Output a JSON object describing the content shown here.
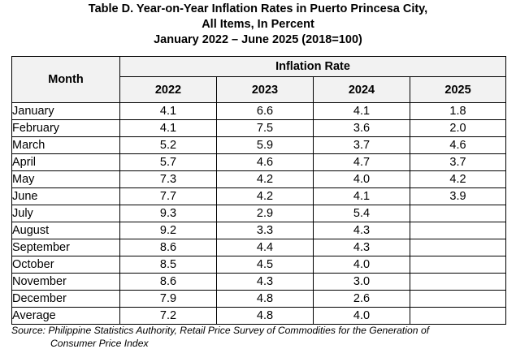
{
  "title": {
    "line1": "Table D. Year-on-Year Inflation Rates in Puerto Princesa City,",
    "line2": "All Items, In Percent",
    "line3": "January 2022 – June 2025 (2018=100)"
  },
  "table": {
    "month_header": "Month",
    "group_header": "Inflation Rate",
    "years": [
      "2022",
      "2023",
      "2024",
      "2025"
    ],
    "rows": [
      {
        "month": "January",
        "values": [
          "4.1",
          "6.6",
          "4.1",
          "1.8"
        ]
      },
      {
        "month": "February",
        "values": [
          "4.1",
          "7.5",
          "3.6",
          "2.0"
        ]
      },
      {
        "month": "March",
        "values": [
          "5.2",
          "5.9",
          "3.7",
          "4.6"
        ]
      },
      {
        "month": "April",
        "values": [
          "5.7",
          "4.6",
          "4.7",
          "3.7"
        ]
      },
      {
        "month": "May",
        "values": [
          "7.3",
          "4.2",
          "4.0",
          "4.2"
        ]
      },
      {
        "month": "June",
        "values": [
          "7.7",
          "4.2",
          "4.1",
          "3.9"
        ]
      },
      {
        "month": "July",
        "values": [
          "9.3",
          "2.9",
          "5.4",
          ""
        ]
      },
      {
        "month": "August",
        "values": [
          "9.2",
          "3.3",
          "4.3",
          ""
        ]
      },
      {
        "month": "September",
        "values": [
          "8.6",
          "4.4",
          "4.3",
          ""
        ]
      },
      {
        "month": "October",
        "values": [
          "8.5",
          "4.5",
          "4.0",
          ""
        ]
      },
      {
        "month": "November",
        "values": [
          "8.6",
          "4.3",
          "3.0",
          ""
        ]
      },
      {
        "month": "December",
        "values": [
          "7.9",
          "4.8",
          "2.6",
          ""
        ]
      },
      {
        "month": "Average",
        "values": [
          "7.2",
          "4.8",
          "4.0",
          ""
        ]
      }
    ]
  },
  "source": {
    "line1": "Source: Philippine Statistics Authority, Retail Price Survey of Commodities for the Generation of",
    "line2": "Consumer Price Index"
  },
  "colors": {
    "header_background": "#f2f2f2",
    "border": "#000000"
  }
}
